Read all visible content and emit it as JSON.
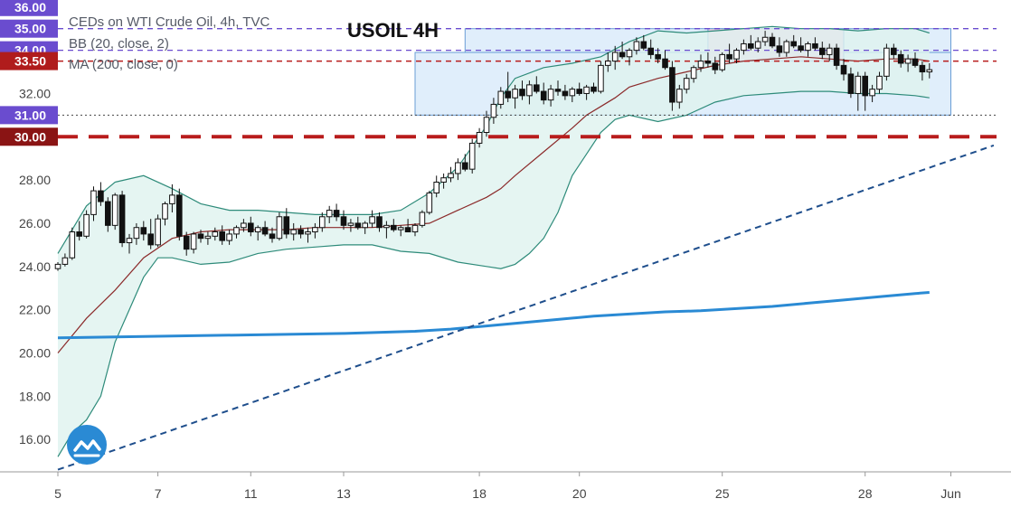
{
  "header": {
    "symbol_line": "CEDs on WTI Crude Oil, 4h, TVC",
    "title": "USOIL 4H",
    "indicators": [
      "BB (20, close, 2)",
      "MA (200, close, 0)"
    ]
  },
  "colors": {
    "bb_fill": "#dff2ef",
    "bb_line": "#2e8b7a",
    "basis_line": "#8b2a2a",
    "ma200_line": "#2a8ad4",
    "trendline": "#1e4e8c",
    "zone_blue_fill": "#d6e8fa",
    "zone_blue_border": "#6a9ed6",
    "zone_pink_fill": "#f0c8de",
    "dashed_red": "#b81c1c",
    "dashed_purple": "#6a4ccf",
    "badge_purple": "#6a4ccf",
    "badge_red": "#b01c1c",
    "badge_darkred": "#8a1414"
  },
  "chart_data": {
    "type": "candlestick",
    "title": "USOIL 4H",
    "ylim": [
      14.5,
      36.2
    ],
    "y_ticks": [
      "16.00",
      "18.00",
      "20.00",
      "22.00",
      "24.00",
      "26.00",
      "28.00",
      "32.00"
    ],
    "x_tick_labels": [
      {
        "label": "5",
        "bar": 0
      },
      {
        "label": "7",
        "bar": 14
      },
      {
        "label": "11",
        "bar": 27
      },
      {
        "label": "13",
        "bar": 40
      },
      {
        "label": "18",
        "bar": 59
      },
      {
        "label": "20",
        "bar": 73
      },
      {
        "label": "25",
        "bar": 93
      },
      {
        "label": "28",
        "bar": 113
      },
      {
        "label": "Jun",
        "bar": 125
      }
    ],
    "price_levels": [
      {
        "label": "36.00",
        "value": 36.0,
        "line": "none",
        "badge": "purple"
      },
      {
        "label": "35.00",
        "value": 35.0,
        "line": "dashed-purple",
        "badge": "purple"
      },
      {
        "label": "34.00",
        "value": 34.0,
        "line": "dashed-purple",
        "badge": "purple"
      },
      {
        "label": "33.50",
        "value": 33.5,
        "line": "dashed-red",
        "badge": "red"
      },
      {
        "label": "31.00",
        "value": 31.0,
        "line": "dotted-gray",
        "badge": "purple"
      },
      {
        "label": "30.00",
        "value": 30.0,
        "line": "bold-dashed-red",
        "badge": "darkred"
      }
    ],
    "zones": [
      {
        "kind": "blue",
        "from_bar": 50,
        "to_bar": 125,
        "top": 33.9,
        "bottom": 31.0
      },
      {
        "kind": "blue",
        "from_bar": 57,
        "to_bar": 125,
        "top": 35.0,
        "bottom": 33.9
      },
      {
        "kind": "pink",
        "from_bar": 91,
        "to_bar": 110,
        "top": 35.0,
        "bottom": 33.5
      }
    ],
    "ohlc": [
      [
        23.9,
        24.2,
        23.8,
        24.1
      ],
      [
        24.1,
        24.6,
        24.0,
        24.4
      ],
      [
        24.4,
        25.8,
        24.3,
        25.6
      ],
      [
        25.6,
        26.1,
        25.2,
        25.4
      ],
      [
        25.4,
        26.6,
        25.3,
        26.4
      ],
      [
        26.4,
        27.7,
        26.1,
        27.5
      ],
      [
        27.5,
        27.9,
        26.8,
        27.0
      ],
      [
        27.0,
        27.2,
        25.6,
        25.9
      ],
      [
        25.9,
        27.4,
        25.7,
        27.3
      ],
      [
        27.3,
        27.5,
        24.9,
        25.1
      ],
      [
        25.1,
        25.5,
        24.6,
        25.3
      ],
      [
        25.3,
        26.0,
        25.0,
        25.8
      ],
      [
        25.8,
        26.1,
        25.2,
        25.5
      ],
      [
        25.5,
        26.2,
        24.8,
        25.0
      ],
      [
        25.0,
        26.4,
        24.9,
        26.2
      ],
      [
        26.2,
        27.0,
        25.9,
        26.9
      ],
      [
        26.9,
        27.8,
        26.5,
        27.3
      ],
      [
        27.3,
        27.6,
        25.2,
        25.4
      ],
      [
        25.4,
        25.6,
        24.5,
        24.8
      ],
      [
        24.8,
        25.6,
        24.6,
        25.5
      ],
      [
        25.5,
        25.7,
        25.1,
        25.3
      ],
      [
        25.3,
        25.6,
        25.0,
        25.4
      ],
      [
        25.4,
        25.8,
        25.2,
        25.6
      ],
      [
        25.6,
        25.9,
        25.0,
        25.2
      ],
      [
        25.2,
        25.7,
        25.0,
        25.5
      ],
      [
        25.5,
        25.9,
        25.3,
        25.8
      ],
      [
        25.8,
        26.2,
        25.6,
        26.0
      ],
      [
        26.0,
        26.3,
        25.4,
        25.6
      ],
      [
        25.6,
        25.9,
        25.2,
        25.8
      ],
      [
        25.8,
        26.1,
        25.4,
        25.5
      ],
      [
        25.5,
        25.8,
        25.1,
        25.3
      ],
      [
        25.3,
        26.5,
        25.2,
        26.3
      ],
      [
        26.3,
        26.7,
        25.3,
        25.5
      ],
      [
        25.5,
        26.0,
        25.2,
        25.7
      ],
      [
        25.7,
        25.9,
        25.3,
        25.5
      ],
      [
        25.5,
        25.8,
        25.1,
        25.6
      ],
      [
        25.6,
        26.0,
        25.3,
        25.8
      ],
      [
        25.8,
        26.5,
        25.6,
        26.3
      ],
      [
        26.3,
        26.8,
        26.0,
        26.6
      ],
      [
        26.6,
        26.9,
        26.1,
        26.3
      ],
      [
        26.3,
        26.6,
        25.7,
        25.9
      ],
      [
        25.9,
        26.2,
        25.6,
        26.0
      ],
      [
        26.0,
        26.3,
        25.7,
        25.8
      ],
      [
        25.8,
        26.1,
        25.5,
        26.0
      ],
      [
        26.0,
        26.6,
        25.8,
        26.3
      ],
      [
        26.3,
        26.5,
        25.6,
        25.8
      ],
      [
        25.8,
        26.1,
        25.3,
        25.9
      ],
      [
        25.9,
        26.2,
        25.6,
        25.7
      ],
      [
        25.7,
        25.9,
        25.4,
        25.8
      ],
      [
        25.8,
        26.2,
        25.6,
        25.6
      ],
      [
        25.6,
        26.0,
        25.4,
        25.9
      ],
      [
        25.9,
        26.6,
        25.8,
        26.5
      ],
      [
        26.5,
        27.5,
        26.4,
        27.4
      ],
      [
        27.4,
        28.2,
        27.2,
        27.9
      ],
      [
        27.9,
        28.3,
        27.6,
        28.1
      ],
      [
        28.1,
        28.6,
        27.9,
        28.3
      ],
      [
        28.3,
        29.0,
        28.0,
        28.8
      ],
      [
        28.8,
        29.2,
        28.4,
        28.5
      ],
      [
        28.5,
        29.9,
        28.3,
        29.7
      ],
      [
        29.7,
        30.4,
        29.5,
        30.2
      ],
      [
        30.2,
        31.2,
        30.0,
        30.9
      ],
      [
        30.9,
        31.8,
        30.6,
        31.5
      ],
      [
        31.5,
        32.3,
        31.3,
        32.1
      ],
      [
        32.1,
        33.0,
        31.6,
        31.8
      ],
      [
        31.8,
        32.4,
        31.3,
        32.2
      ],
      [
        32.2,
        32.6,
        31.7,
        31.9
      ],
      [
        31.9,
        32.6,
        31.5,
        32.4
      ],
      [
        32.4,
        32.8,
        32.0,
        32.1
      ],
      [
        32.1,
        32.5,
        31.5,
        31.7
      ],
      [
        31.7,
        32.4,
        31.4,
        32.2
      ],
      [
        32.2,
        32.6,
        31.9,
        32.1
      ],
      [
        32.1,
        32.4,
        31.7,
        31.9
      ],
      [
        31.9,
        32.3,
        31.6,
        32.2
      ],
      [
        32.2,
        32.5,
        31.9,
        32.0
      ],
      [
        32.0,
        32.4,
        31.7,
        32.3
      ],
      [
        32.3,
        32.5,
        32.0,
        32.1
      ],
      [
        32.1,
        33.5,
        32.0,
        33.3
      ],
      [
        33.3,
        33.9,
        33.0,
        33.5
      ],
      [
        33.5,
        34.2,
        33.1,
        33.9
      ],
      [
        33.9,
        34.4,
        33.6,
        33.7
      ],
      [
        33.7,
        34.1,
        33.3,
        34.0
      ],
      [
        34.0,
        34.6,
        33.8,
        34.4
      ],
      [
        34.4,
        34.7,
        34.0,
        34.1
      ],
      [
        34.1,
        34.5,
        33.6,
        33.8
      ],
      [
        33.8,
        34.1,
        33.4,
        33.6
      ],
      [
        33.6,
        34.0,
        33.1,
        33.2
      ],
      [
        33.2,
        33.5,
        31.2,
        31.6
      ],
      [
        31.6,
        32.4,
        31.3,
        32.2
      ],
      [
        32.2,
        32.9,
        32.0,
        32.7
      ],
      [
        32.7,
        33.3,
        32.5,
        33.2
      ],
      [
        33.2,
        33.8,
        33.0,
        33.5
      ],
      [
        33.5,
        33.9,
        33.2,
        33.4
      ],
      [
        33.4,
        33.7,
        32.9,
        33.1
      ],
      [
        33.1,
        33.9,
        33.0,
        33.8
      ],
      [
        33.8,
        34.3,
        33.4,
        33.6
      ],
      [
        33.6,
        34.1,
        33.4,
        34.0
      ],
      [
        34.0,
        34.5,
        33.8,
        34.3
      ],
      [
        34.3,
        34.7,
        34.0,
        34.1
      ],
      [
        34.1,
        34.6,
        33.9,
        34.4
      ],
      [
        34.4,
        34.9,
        34.2,
        34.6
      ],
      [
        34.6,
        34.8,
        34.1,
        34.2
      ],
      [
        34.2,
        34.6,
        33.7,
        33.9
      ],
      [
        33.9,
        34.5,
        33.7,
        34.4
      ],
      [
        34.4,
        34.7,
        34.1,
        34.2
      ],
      [
        34.2,
        34.6,
        33.9,
        34.0
      ],
      [
        34.0,
        34.4,
        33.7,
        34.3
      ],
      [
        34.3,
        34.6,
        34.0,
        34.1
      ],
      [
        34.1,
        34.4,
        33.6,
        33.8
      ],
      [
        33.8,
        34.3,
        33.5,
        34.1
      ],
      [
        34.1,
        34.3,
        33.1,
        33.3
      ],
      [
        33.3,
        33.6,
        32.6,
        32.9
      ],
      [
        32.9,
        33.2,
        31.8,
        32.0
      ],
      [
        32.0,
        33.0,
        31.2,
        32.8
      ],
      [
        32.8,
        33.0,
        31.2,
        31.9
      ],
      [
        31.9,
        32.4,
        31.6,
        32.2
      ],
      [
        32.2,
        33.0,
        32.0,
        32.8
      ],
      [
        32.8,
        34.3,
        32.6,
        34.1
      ],
      [
        34.1,
        34.3,
        33.6,
        33.8
      ],
      [
        33.8,
        34.0,
        33.2,
        33.4
      ],
      [
        33.4,
        33.8,
        33.0,
        33.6
      ],
      [
        33.6,
        33.9,
        33.2,
        33.3
      ],
      [
        33.3,
        33.5,
        32.6,
        33.0
      ],
      [
        33.0,
        33.4,
        32.7,
        33.1
      ]
    ],
    "bb_upper": [
      [
        0,
        24.6
      ],
      [
        4,
        26.8
      ],
      [
        8,
        27.9
      ],
      [
        12,
        28.2
      ],
      [
        16,
        27.6
      ],
      [
        20,
        26.9
      ],
      [
        24,
        26.6
      ],
      [
        28,
        26.6
      ],
      [
        32,
        26.5
      ],
      [
        36,
        26.4
      ],
      [
        40,
        26.4
      ],
      [
        44,
        26.4
      ],
      [
        48,
        26.6
      ],
      [
        52,
        27.4
      ],
      [
        56,
        28.6
      ],
      [
        60,
        30.5
      ],
      [
        62,
        31.8
      ],
      [
        64,
        32.7
      ],
      [
        68,
        33.2
      ],
      [
        72,
        33.4
      ],
      [
        76,
        33.7
      ],
      [
        80,
        34.4
      ],
      [
        84,
        34.9
      ],
      [
        88,
        34.8
      ],
      [
        92,
        34.9
      ],
      [
        96,
        35.0
      ],
      [
        100,
        35.1
      ],
      [
        104,
        35.0
      ],
      [
        108,
        35.0
      ],
      [
        112,
        34.9
      ],
      [
        116,
        35.0
      ],
      [
        120,
        35.0
      ],
      [
        122,
        34.8
      ]
    ],
    "bb_lower": [
      [
        0,
        15.2
      ],
      [
        2,
        16.3
      ],
      [
        4,
        16.9
      ],
      [
        6,
        18.0
      ],
      [
        8,
        20.5
      ],
      [
        10,
        22.0
      ],
      [
        12,
        23.5
      ],
      [
        14,
        24.4
      ],
      [
        16,
        24.4
      ],
      [
        20,
        24.1
      ],
      [
        24,
        24.2
      ],
      [
        28,
        24.6
      ],
      [
        32,
        24.8
      ],
      [
        36,
        24.9
      ],
      [
        40,
        25.0
      ],
      [
        44,
        25.0
      ],
      [
        48,
        24.7
      ],
      [
        52,
        24.6
      ],
      [
        56,
        24.2
      ],
      [
        60,
        24.0
      ],
      [
        62,
        23.9
      ],
      [
        64,
        24.1
      ],
      [
        66,
        24.6
      ],
      [
        68,
        25.3
      ],
      [
        70,
        26.5
      ],
      [
        72,
        28.2
      ],
      [
        74,
        29.2
      ],
      [
        76,
        30.2
      ],
      [
        78,
        30.8
      ],
      [
        80,
        31.0
      ],
      [
        84,
        30.7
      ],
      [
        88,
        31.0
      ],
      [
        92,
        31.6
      ],
      [
        96,
        31.9
      ],
      [
        100,
        32.0
      ],
      [
        104,
        32.1
      ],
      [
        108,
        32.1
      ],
      [
        112,
        32.0
      ],
      [
        116,
        32.0
      ],
      [
        120,
        31.9
      ],
      [
        122,
        31.8
      ]
    ],
    "bb_basis": [
      [
        0,
        20.0
      ],
      [
        4,
        21.6
      ],
      [
        8,
        22.9
      ],
      [
        12,
        24.4
      ],
      [
        16,
        25.3
      ],
      [
        20,
        25.6
      ],
      [
        24,
        25.7
      ],
      [
        28,
        25.7
      ],
      [
        32,
        25.7
      ],
      [
        36,
        25.8
      ],
      [
        40,
        25.8
      ],
      [
        44,
        25.8
      ],
      [
        48,
        25.9
      ],
      [
        52,
        26.0
      ],
      [
        56,
        26.6
      ],
      [
        60,
        27.2
      ],
      [
        62,
        27.6
      ],
      [
        64,
        28.2
      ],
      [
        68,
        29.3
      ],
      [
        72,
        30.4
      ],
      [
        74,
        31.0
      ],
      [
        76,
        31.4
      ],
      [
        78,
        31.8
      ],
      [
        80,
        32.3
      ],
      [
        84,
        32.7
      ],
      [
        88,
        33.0
      ],
      [
        92,
        33.3
      ],
      [
        96,
        33.5
      ],
      [
        100,
        33.6
      ],
      [
        104,
        33.7
      ],
      [
        108,
        33.6
      ],
      [
        112,
        33.5
      ],
      [
        116,
        33.6
      ],
      [
        120,
        33.6
      ],
      [
        122,
        33.5
      ]
    ],
    "ma200": [
      [
        0,
        20.7
      ],
      [
        10,
        20.75
      ],
      [
        20,
        20.8
      ],
      [
        30,
        20.85
      ],
      [
        40,
        20.9
      ],
      [
        50,
        21.0
      ],
      [
        55,
        21.1
      ],
      [
        60,
        21.25
      ],
      [
        65,
        21.4
      ],
      [
        70,
        21.55
      ],
      [
        75,
        21.7
      ],
      [
        80,
        21.8
      ],
      [
        85,
        21.9
      ],
      [
        90,
        21.95
      ],
      [
        95,
        22.05
      ],
      [
        100,
        22.15
      ],
      [
        105,
        22.3
      ],
      [
        110,
        22.45
      ],
      [
        115,
        22.6
      ],
      [
        120,
        22.75
      ],
      [
        122,
        22.8
      ]
    ],
    "trendline": {
      "from": [
        0,
        14.6
      ],
      "to": [
        131,
        29.6
      ]
    }
  }
}
